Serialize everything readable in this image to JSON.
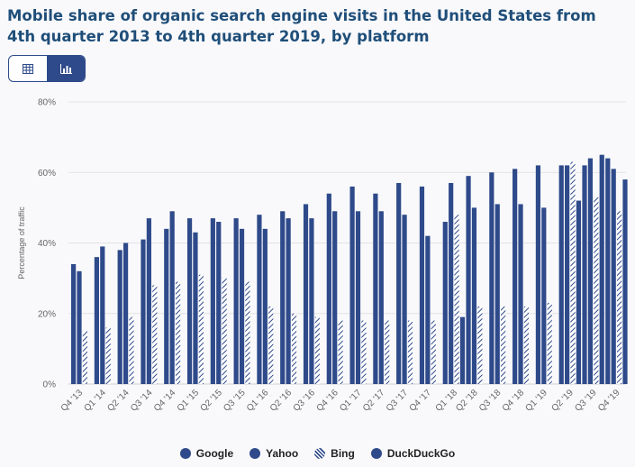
{
  "title": "Mobile share of organic search engine visits in the United States from 4th quarter 2013 to 4th quarter 2019, by platform",
  "toolbar": {
    "table_icon": "table-icon",
    "chart_icon": "bar-chart-icon"
  },
  "colors": {
    "bar": "#2e4a8a",
    "bing": "#9aa6c6",
    "axis_text": "#666666",
    "grid": "#e3e3e3"
  },
  "chart_data": {
    "type": "bar",
    "title": "Mobile share of organic search engine visits in the United States from 4th quarter 2013 to 4th quarter 2019, by platform",
    "xlabel": "",
    "ylabel": "Percentage of traffic",
    "ylim": [
      0,
      80
    ],
    "yticks": [
      "0%",
      "20%",
      "40%",
      "60%",
      "80%"
    ],
    "grid": true,
    "legend_position": "bottom",
    "categories": [
      "Q4 '13",
      "Q1 '14",
      "Q2 '14",
      "Q3 '14",
      "Q4 '14",
      "Q1 '15",
      "Q2 '15",
      "Q3 '15",
      "Q1 '16",
      "Q2 '16",
      "Q3 '16",
      "Q4 '16",
      "Q1 '17",
      "Q2 '17",
      "Q3 '17",
      "Q4 '17",
      "Q1 '18",
      "Q2 '18",
      "Q3 '18",
      "Q4 '18",
      "Q1 '19",
      "Q2 '19",
      "Q3 '19",
      "Q4 '19"
    ],
    "series": [
      {
        "name": "Google",
        "values": [
          34,
          36,
          38,
          41,
          44,
          47,
          47,
          47,
          48,
          49,
          51,
          54,
          56,
          54,
          57,
          56,
          46,
          59,
          60,
          61,
          62,
          62,
          62,
          64
        ]
      },
      {
        "name": "Yahoo",
        "values": [
          32,
          39,
          40,
          47,
          49,
          43,
          46,
          44,
          44,
          47,
          47,
          49,
          49,
          49,
          48,
          42,
          57,
          50,
          51,
          51,
          50,
          62,
          64,
          61
        ]
      },
      {
        "name": "Bing",
        "values": [
          15,
          16,
          19,
          28,
          29,
          31,
          30,
          29,
          22,
          20,
          19,
          18,
          18,
          18,
          18,
          18,
          48,
          22,
          22,
          22,
          23,
          63,
          53,
          49
        ]
      },
      {
        "name": "DuckDuckGo",
        "values": [
          null,
          null,
          null,
          null,
          null,
          null,
          null,
          null,
          null,
          null,
          null,
          null,
          null,
          null,
          null,
          null,
          19,
          null,
          null,
          null,
          null,
          52,
          65,
          58
        ]
      }
    ]
  }
}
